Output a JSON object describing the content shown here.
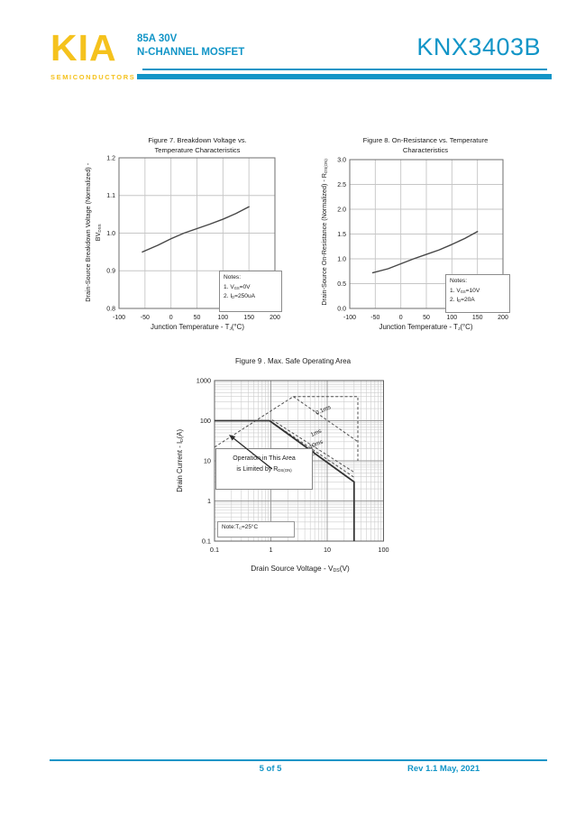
{
  "header": {
    "logo_text": "KIA",
    "logo_subtext": "SEMICONDUCTORS",
    "logo_color": "#F5C21D",
    "accent_color": "#1295C7",
    "rating": "85A 30V",
    "device_type": "N-CHANNEL MOSFET",
    "part_number": "KNX3403B"
  },
  "footer": {
    "page_label": "5 of 5",
    "revision": "Rev 1.1 May, 2021"
  },
  "chart_data": [
    {
      "id": "fig7",
      "type": "line",
      "title_line1": "Figure 7. Breakdown Voltage vs.",
      "title_line2": "Temperature Characteristics",
      "xlabel": "Junction Temperature - T_{J}(°C)",
      "ylabel_line1": "Drain-Source Breakdown Voltage (Normalized) -",
      "ylabel_line2": "BV_{DSS}",
      "xlim": [
        -100,
        200
      ],
      "ylim": [
        0.8,
        1.2
      ],
      "xticks": [
        -100,
        -50,
        0,
        50,
        100,
        150,
        200
      ],
      "xtick_labels": [
        "-100",
        "-50",
        "0",
        "50",
        "100",
        "150",
        "200"
      ],
      "yticks": [
        0.8,
        0.9,
        1.0,
        1.1,
        1.2
      ],
      "ytick_labels": [
        "0.8",
        "0.9",
        "1.0",
        "1.1",
        "1.2"
      ],
      "grid": true,
      "notes": [
        "Notes:",
        "1. V_{GS}=0V",
        "2. I_{D}=250uA"
      ],
      "series": [
        {
          "name": "breakdown-voltage-normalized",
          "points": [
            [
              -55,
              0.95
            ],
            [
              -25,
              0.968
            ],
            [
              0,
              0.985
            ],
            [
              25,
              1.0
            ],
            [
              50,
              1.012
            ],
            [
              75,
              1.024
            ],
            [
              100,
              1.037
            ],
            [
              125,
              1.052
            ],
            [
              150,
              1.07
            ]
          ]
        }
      ]
    },
    {
      "id": "fig8",
      "type": "line",
      "title_line1": "Figure 8. On-Resistance vs. Temperature",
      "title_line2": "Characteristics",
      "xlabel": "Junction Temperature - T_{J}(°C)",
      "ylabel": "Drain-Source On-Resistance (Normalized) - R_{DS(ON)}",
      "xlim": [
        -100,
        200
      ],
      "ylim": [
        0,
        3
      ],
      "xticks": [
        -100,
        -50,
        0,
        50,
        100,
        150,
        200
      ],
      "xtick_labels": [
        "-100",
        "-50",
        "0",
        "50",
        "100",
        "150",
        "200"
      ],
      "yticks": [
        0,
        0.5,
        1.0,
        1.5,
        2.0,
        2.5,
        3.0
      ],
      "ytick_labels": [
        "0.0",
        "0.5",
        "1.0",
        "1.5",
        "2.0",
        "2.5",
        "3.0"
      ],
      "grid": true,
      "notes": [
        "Notes:",
        "1. V_{GS}=10V",
        "2. I_{D}=20A"
      ],
      "series": [
        {
          "name": "rdson-normalized",
          "points": [
            [
              -55,
              0.72
            ],
            [
              -25,
              0.8
            ],
            [
              0,
              0.9
            ],
            [
              25,
              1.0
            ],
            [
              50,
              1.09
            ],
            [
              75,
              1.18
            ],
            [
              100,
              1.29
            ],
            [
              125,
              1.41
            ],
            [
              150,
              1.55
            ]
          ]
        }
      ]
    },
    {
      "id": "fig9",
      "type": "line-loglog",
      "title": "Figure 9 . Max. Safe Operating Area",
      "xlabel": "Drain Source Voltage - V_{DS}(V)",
      "ylabel": "Drain Current - I_{D}(A)",
      "xlim": [
        0.1,
        100
      ],
      "ylim": [
        0.1,
        1000
      ],
      "xtick_labels": [
        "0.1",
        "1",
        "10",
        "100"
      ],
      "ytick_labels": [
        "0.1",
        "1",
        "10",
        "100",
        "1000"
      ],
      "log_x": true,
      "log_y": true,
      "minor_grid": true,
      "series": [
        {
          "name": "rdson-limit-line",
          "style": "dashed",
          "points": [
            [
              0.1,
              22
            ],
            [
              2.5,
              400
            ]
          ]
        },
        {
          "name": "pulse-current-boundary",
          "style": "dashed",
          "points": [
            [
              2.5,
              400
            ],
            [
              35,
              400
            ],
            [
              35,
              10
            ]
          ]
        },
        {
          "name": "0.1ms",
          "style": "dashed",
          "label": "0.1ms",
          "label_at": [
            6.5,
            140
          ],
          "points": [
            [
              2.5,
              400
            ],
            [
              35,
              30
            ]
          ]
        },
        {
          "name": "1ms",
          "style": "dashed",
          "label": "1ms",
          "label_at": [
            5.3,
            40
          ],
          "points": [
            [
              1.05,
              105
            ],
            [
              30,
              5.2
            ]
          ]
        },
        {
          "name": "10ms",
          "style": "dashed",
          "label": "10ms",
          "label_at": [
            5.0,
            20
          ],
          "points": [
            [
              0.95,
              100
            ],
            [
              30,
              3.9
            ]
          ]
        },
        {
          "name": "DC",
          "style": "solid",
          "label": "DC",
          "label_at": [
            4.6,
            12
          ],
          "points": [
            [
              0.1,
              100
            ],
            [
              0.95,
              100
            ],
            [
              30,
              3
            ],
            [
              30,
              0.1
            ]
          ]
        }
      ],
      "annotation": {
        "line1": "Operation in This Area",
        "line2": "is Limited by R_{DS(ON)}",
        "arrow_from": [
          1.05,
          6.3
        ],
        "arrow_to": [
          0.18,
          45
        ]
      },
      "corner_note": "Note:T_{C}=25°C"
    }
  ]
}
